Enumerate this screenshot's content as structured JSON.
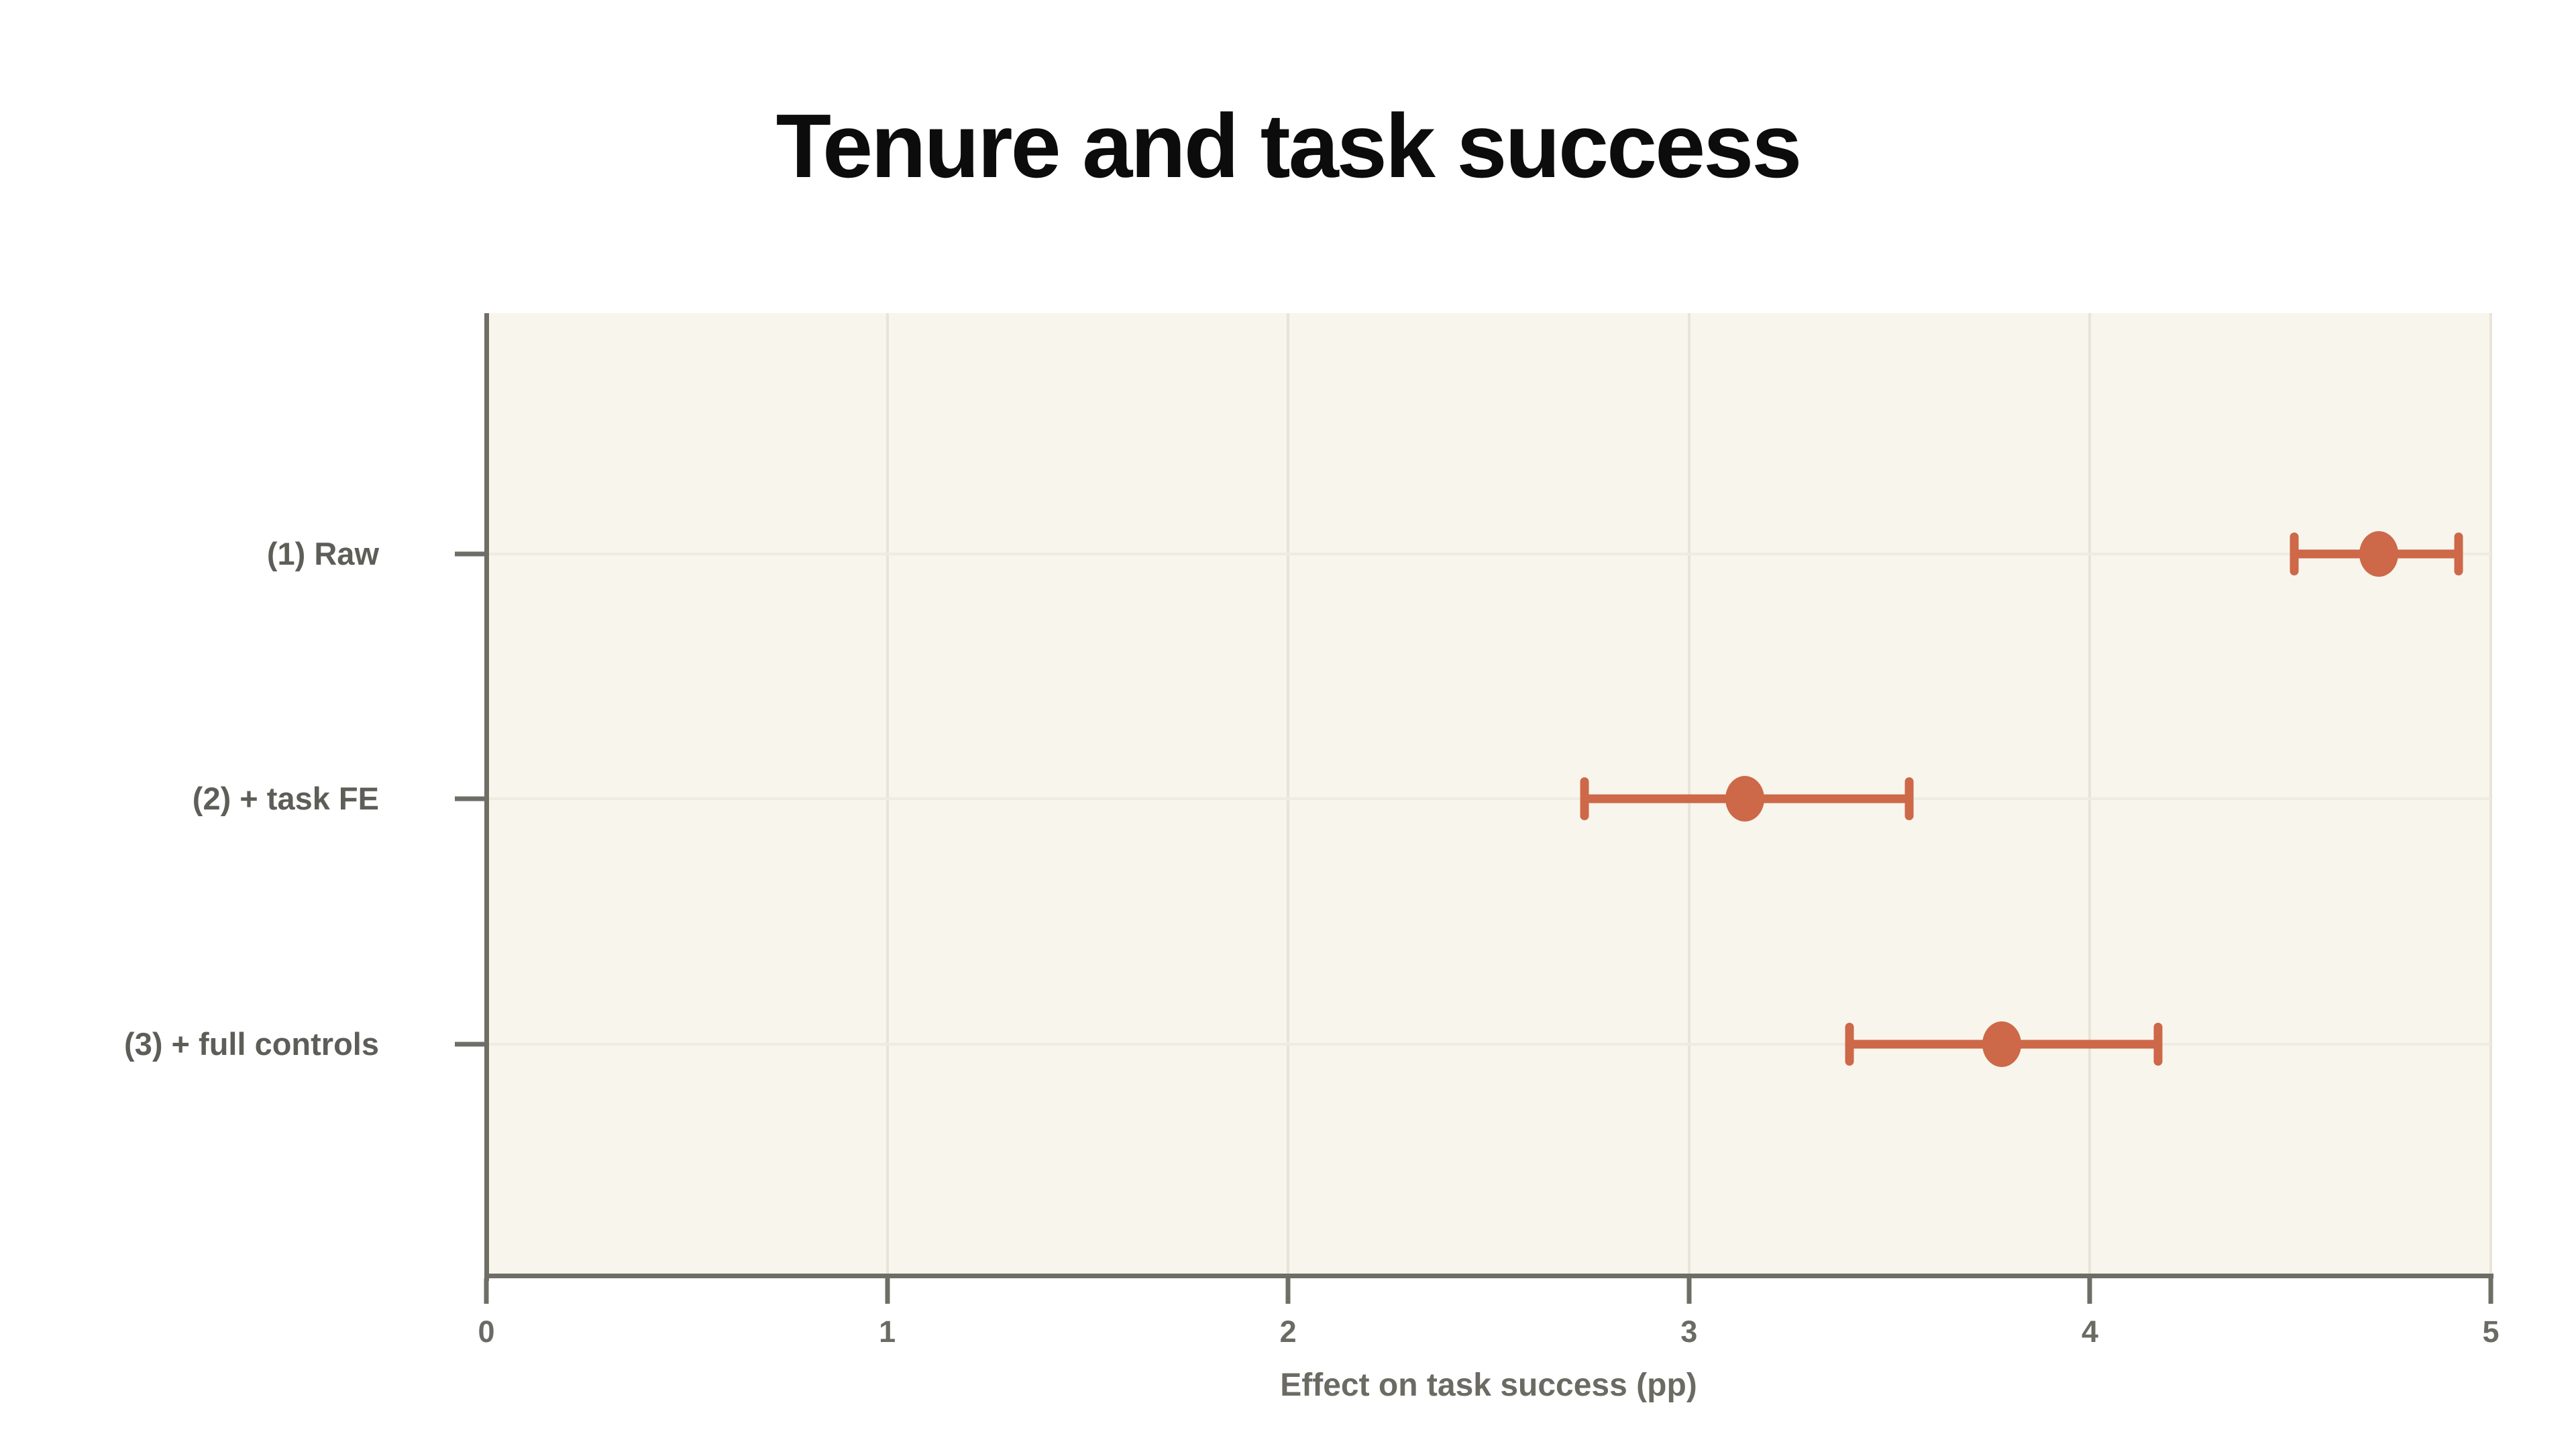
{
  "chart_data": {
    "type": "scatter",
    "subtype": "coefficient-dot-whisker",
    "title": "Tenure and task success",
    "xlabel": "Effect on task success (pp)",
    "ylabel": "",
    "xlim": [
      0,
      5
    ],
    "x_ticks": [
      0,
      1,
      2,
      3,
      4,
      5
    ],
    "grid": true,
    "orientation": "horizontal-error-bars",
    "legend": "none",
    "rows": [
      {
        "label": "(1) Raw",
        "estimate": 4.72,
        "ci_low": 4.51,
        "ci_high": 4.92
      },
      {
        "label": "(2) + task FE",
        "estimate": 3.14,
        "ci_low": 2.74,
        "ci_high": 3.55
      },
      {
        "label": "(3) + full controls",
        "estimate": 3.78,
        "ci_low": 3.4,
        "ci_high": 4.17
      }
    ],
    "row_positions_pct": [
      25.0,
      50.4,
      75.9
    ]
  },
  "colors": {
    "page_bg": "#ffffff",
    "panel_bg": "#f8f5ec",
    "vertical_grid": "#e8e4d7",
    "horizontal_grid": "#eeebe0",
    "axis": "#6e6e67",
    "tick_label": "#6b6b64",
    "row_label": "#5e5e58",
    "title": "#0c0c0c",
    "marker": "#cd6848"
  }
}
